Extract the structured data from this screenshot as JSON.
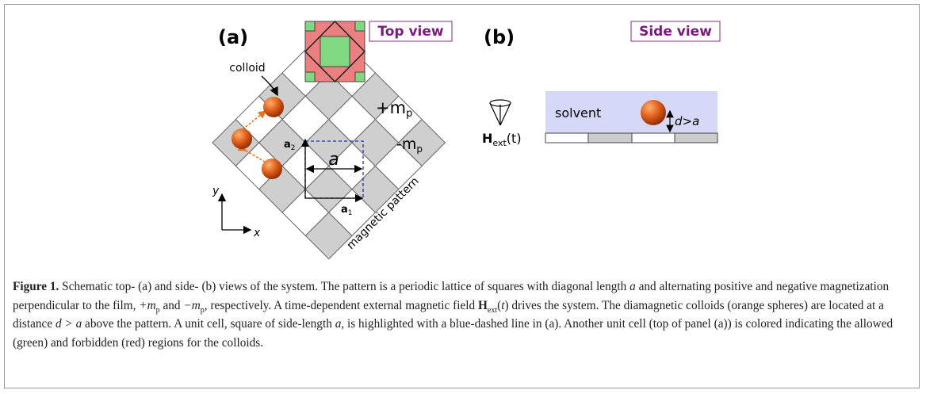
{
  "panel_a": {
    "label": "(a)",
    "view": "Top view",
    "colloid": "colloid",
    "plus_m": {
      "text": "+m",
      "sub": "p"
    },
    "minus_m": {
      "text": "-m",
      "sub": "p"
    },
    "a1": {
      "text": "a",
      "sub": "1"
    },
    "a2": {
      "text": "a",
      "sub": "2"
    },
    "a": "a",
    "y": "y",
    "x": "x",
    "pattern": "magnetic pattern"
  },
  "panel_b": {
    "label": "(b)",
    "view": "Side view",
    "solvent": "solvent",
    "field": {
      "text": "H",
      "sub": "ext",
      "tail": "(t)"
    },
    "distance": "d>a"
  },
  "caption": {
    "parts": [
      "Figure 1.",
      " Schematic top- (a) and side- (b) views of the system. The pattern is a periodic lattice of squares with diagonal length ",
      "a",
      " and alternating positive and negative magnetization perpendicular to the film, ",
      "+m",
      "p",
      " and ",
      "−m",
      "p",
      ", respectively. A time-dependent external magnetic field ",
      "H",
      "ext",
      "(",
      "t",
      ")",
      " drives the system. The diamagnetic colloids (orange spheres) are located at a distance ",
      "d > a",
      " above the pattern. A unit cell, square of side-length ",
      "a",
      ", is highlighted with a blue-dashed line in (a). Another unit cell (top of panel (a)) is colored indicating the allowed (green) and forbidden (red) regions for the colloids."
    ]
  }
}
